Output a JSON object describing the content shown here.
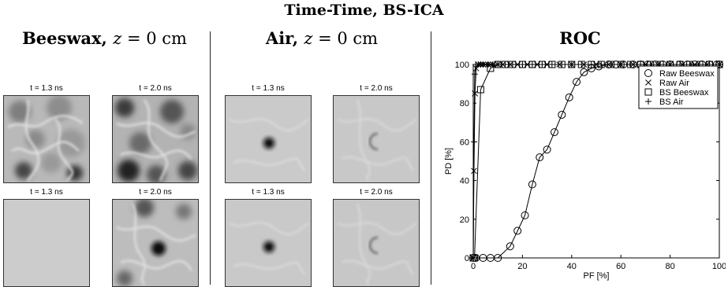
{
  "figure": {
    "title": "Time-Time, BS-ICA",
    "panels": [
      {
        "material": "Beeswax,",
        "depth_var": "z",
        "depth_eq": " = 0 cm",
        "images": [
          {
            "label": "t = 1.3 ns"
          },
          {
            "label": "t = 2.0 ns"
          },
          {
            "label": "t = 1.3 ns"
          },
          {
            "label": "t = 2.0 ns"
          }
        ]
      },
      {
        "material": "Air,",
        "depth_var": "z",
        "depth_eq": " = 0 cm",
        "images": [
          {
            "label": "t = 1.3 ns"
          },
          {
            "label": "t = 2.0 ns"
          },
          {
            "label": "t = 1.3 ns"
          },
          {
            "label": "t = 2.0 ns"
          }
        ]
      }
    ],
    "roc_title": "ROC"
  },
  "chart_data": {
    "type": "line",
    "title": "ROC",
    "xlabel": "PF [%]",
    "ylabel": "PD [%]",
    "xlim": [
      0,
      100
    ],
    "ylim": [
      0,
      100
    ],
    "xticks": [
      0,
      20,
      40,
      60,
      80,
      100
    ],
    "yticks": [
      0,
      20,
      40,
      60,
      80,
      100
    ],
    "grid": false,
    "legend_position": "top-right",
    "series": [
      {
        "name": "Raw Beeswax",
        "marker": "circle",
        "x": [
          0,
          1,
          4,
          7,
          10,
          15,
          18,
          21,
          24,
          27,
          30,
          33,
          36,
          39,
          42,
          45,
          48,
          51,
          55,
          58,
          61,
          65,
          68,
          71,
          74,
          77,
          80,
          84,
          87,
          90,
          93,
          96,
          99,
          100
        ],
        "y": [
          0,
          0,
          0,
          0,
          0,
          6,
          14,
          22,
          38,
          52,
          56,
          65,
          74,
          83,
          91,
          96,
          98,
          99,
          100,
          100,
          100,
          100,
          100,
          100,
          100,
          100,
          100,
          100,
          100,
          100,
          100,
          100,
          100,
          100
        ]
      },
      {
        "name": "Raw Air",
        "marker": "x",
        "x": [
          0,
          0.3,
          0.7,
          1.2,
          2,
          3,
          4,
          5,
          6,
          7,
          8,
          10,
          12,
          15,
          18,
          22,
          26,
          30,
          35,
          40,
          45,
          50,
          55,
          60,
          65,
          70,
          75,
          80,
          85,
          90,
          95,
          100
        ],
        "y": [
          0,
          45,
          85,
          98,
          100,
          100,
          100,
          100,
          100,
          100,
          100,
          100,
          100,
          100,
          100,
          100,
          100,
          100,
          100,
          100,
          100,
          100,
          100,
          100,
          100,
          100,
          100,
          100,
          100,
          100,
          100,
          100
        ]
      },
      {
        "name": "BS Beeswax",
        "marker": "square",
        "x": [
          0,
          0.5,
          3,
          7,
          10,
          13,
          16,
          20,
          24,
          28,
          32,
          36,
          40,
          44,
          48,
          52,
          56,
          60,
          64,
          68,
          72,
          76,
          80,
          84,
          88,
          92,
          96,
          100
        ],
        "y": [
          0,
          0,
          87,
          98,
          100,
          100,
          100,
          100,
          100,
          100,
          100,
          100,
          100,
          100,
          100,
          100,
          100,
          100,
          100,
          100,
          100,
          100,
          100,
          100,
          100,
          100,
          100,
          100
        ]
      },
      {
        "name": "BS Air",
        "marker": "plus",
        "x": [
          0,
          0.3,
          0.6,
          1,
          2,
          3,
          4,
          6,
          8,
          10,
          13,
          16,
          20,
          24,
          28,
          32,
          36,
          40,
          44,
          48,
          52,
          56,
          60,
          64,
          68,
          72,
          76,
          80,
          84,
          88,
          92,
          96,
          100
        ],
        "y": [
          0,
          60,
          95,
          100,
          100,
          100,
          100,
          100,
          100,
          100,
          100,
          100,
          100,
          100,
          100,
          100,
          100,
          100,
          100,
          100,
          100,
          100,
          100,
          100,
          100,
          100,
          100,
          100,
          100,
          100,
          100,
          100,
          100
        ]
      }
    ]
  }
}
